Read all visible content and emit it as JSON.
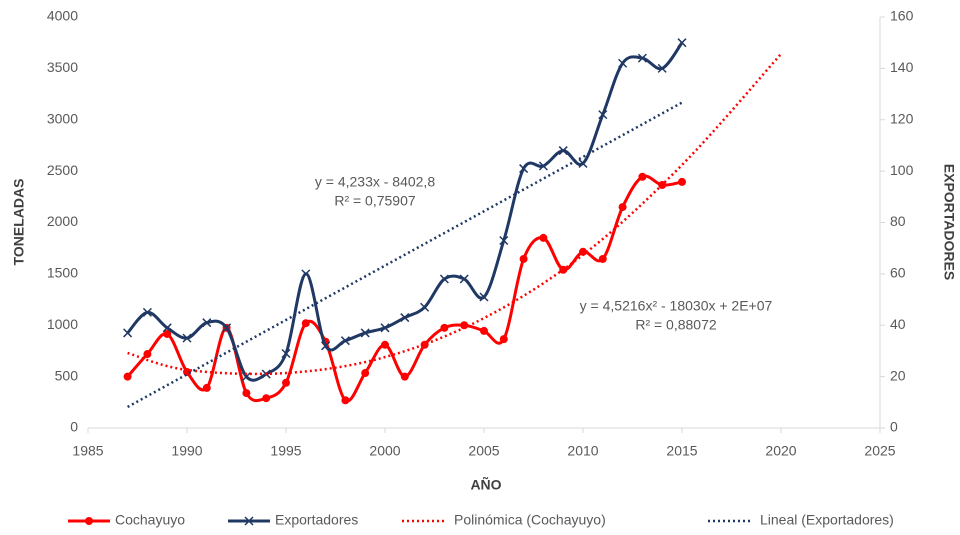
{
  "chart_data": {
    "type": "line",
    "xlabel": "AÑO",
    "ylabel": "TONELADAS",
    "y2label": "EXPORTADORES",
    "x": [
      1987,
      1988,
      1989,
      1990,
      1991,
      1992,
      1993,
      1994,
      1995,
      1996,
      1997,
      1998,
      1999,
      2000,
      2001,
      2002,
      2003,
      2004,
      2005,
      2006,
      2007,
      2008,
      2009,
      2010,
      2011,
      2012,
      2013,
      2014,
      2015
    ],
    "series": [
      {
        "name": "Cochayuyo",
        "color": "#ff0000",
        "marker": "circle",
        "smooth": true,
        "values": [
          500,
          720,
          915,
          545,
          390,
          975,
          340,
          290,
          440,
          1020,
          840,
          270,
          535,
          810,
          500,
          810,
          975,
          1000,
          945,
          865,
          1645,
          1850,
          1540,
          1715,
          1645,
          2150,
          2445,
          2365,
          2395
        ]
      },
      {
        "name": "Exportadores",
        "color": "#203864",
        "marker": "x",
        "smooth": true,
        "axis": "y2",
        "values": [
          37,
          45,
          39,
          35,
          41,
          39,
          20,
          21,
          29,
          60,
          32,
          34,
          37,
          39,
          43,
          47,
          58,
          58,
          51,
          73,
          101,
          102,
          108,
          103,
          122,
          142,
          144,
          140,
          150
        ]
      },
      {
        "name": "Polinómica (Cochayuyo)",
        "color": "#ff0000",
        "line_style": "dotted",
        "smooth": true,
        "x": [
          1987,
          1990,
          1995,
          2000,
          2005,
          2010,
          2015,
          2020
        ],
        "values": [
          730,
          565,
          535,
          690,
          1070,
          1685,
          2560,
          3640
        ]
      },
      {
        "name": "Lineal (Exportadores)",
        "color": "#203864",
        "line_style": "dotted",
        "axis": "y2",
        "x": [
          1987,
          2015
        ],
        "values": [
          8.2,
          126.7
        ]
      }
    ],
    "annotations": [
      "y = 4,233x - 8402,8",
      "R² = 0,75907",
      "y = 4,5216x² - 18030x + 2E+07",
      "R² = 0,88072"
    ],
    "xlim": [
      1985,
      2025
    ],
    "xticks": [
      1985,
      1990,
      1995,
      2000,
      2005,
      2010,
      2015,
      2020,
      2025
    ],
    "ylim": [
      0,
      4000
    ],
    "yticks": [
      0,
      500,
      1000,
      1500,
      2000,
      2500,
      3000,
      3500,
      4000
    ],
    "y2lim": [
      0,
      160
    ],
    "y2ticks": [
      0,
      20,
      40,
      60,
      80,
      100,
      120,
      140,
      160
    ],
    "grid": false,
    "legend": "bottom"
  }
}
